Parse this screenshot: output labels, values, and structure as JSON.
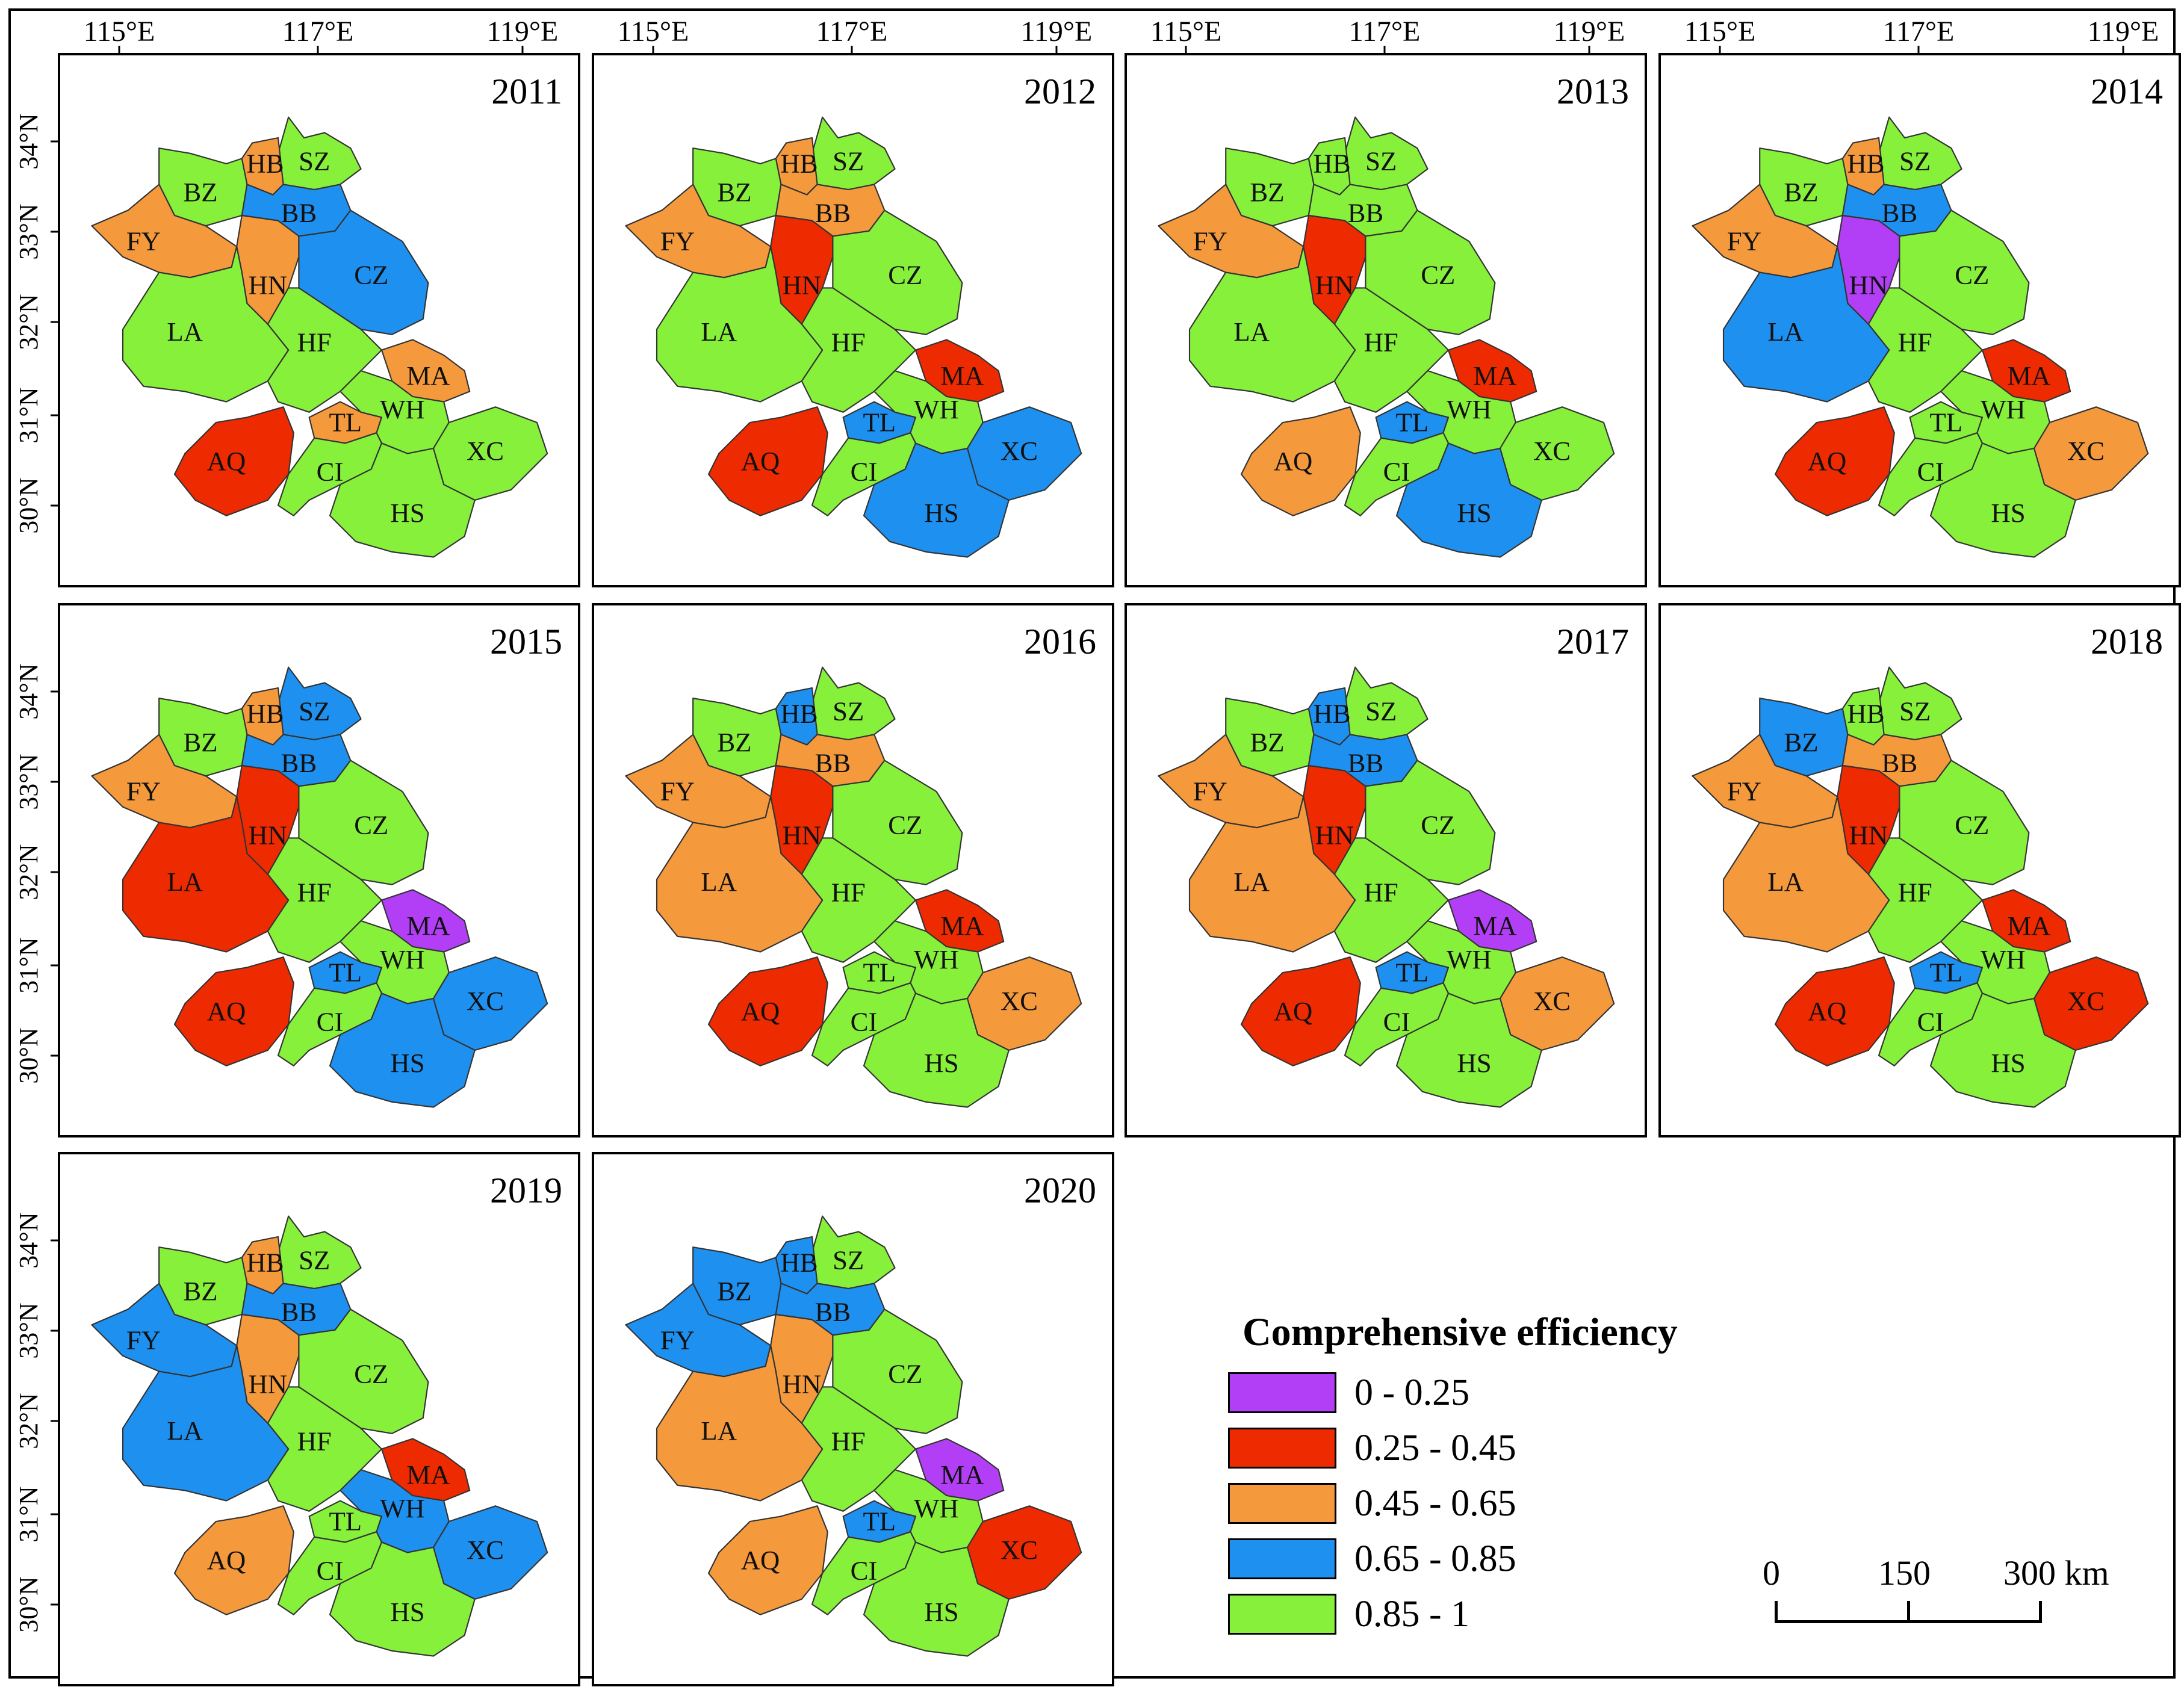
{
  "figure": {
    "longitude_labels": [
      "115°E",
      "117°E",
      "119°E"
    ],
    "latitude_labels": [
      "34°N",
      "33°N",
      "32°N",
      "31°N",
      "30°N"
    ]
  },
  "panels": [
    {
      "year": "2011",
      "regions": {
        "SZ": "g",
        "HB": "o",
        "BZ": "g",
        "FY": "o",
        "BB": "b",
        "HN": "o",
        "CZ": "b",
        "LA": "g",
        "HF": "g",
        "MA": "o",
        "TL": "o",
        "WH": "g",
        "AQ": "r",
        "CI": "g",
        "XC": "g",
        "HS": "g"
      }
    },
    {
      "year": "2012",
      "regions": {
        "SZ": "g",
        "HB": "o",
        "BZ": "g",
        "FY": "o",
        "BB": "o",
        "HN": "r",
        "CZ": "g",
        "LA": "g",
        "HF": "g",
        "MA": "r",
        "TL": "b",
        "WH": "g",
        "AQ": "r",
        "CI": "g",
        "XC": "b",
        "HS": "b"
      }
    },
    {
      "year": "2013",
      "regions": {
        "SZ": "g",
        "HB": "g",
        "BZ": "g",
        "FY": "o",
        "BB": "g",
        "HN": "r",
        "CZ": "g",
        "LA": "g",
        "HF": "g",
        "MA": "r",
        "TL": "b",
        "WH": "g",
        "AQ": "o",
        "CI": "g",
        "XC": "g",
        "HS": "b"
      }
    },
    {
      "year": "2014",
      "regions": {
        "SZ": "g",
        "HB": "o",
        "BZ": "g",
        "FY": "o",
        "BB": "b",
        "HN": "p",
        "CZ": "g",
        "LA": "b",
        "HF": "g",
        "MA": "r",
        "TL": "g",
        "WH": "g",
        "AQ": "r",
        "CI": "g",
        "XC": "o",
        "HS": "g"
      }
    },
    {
      "year": "2015",
      "regions": {
        "SZ": "b",
        "HB": "o",
        "BZ": "g",
        "FY": "o",
        "BB": "b",
        "HN": "r",
        "CZ": "g",
        "LA": "r",
        "HF": "g",
        "MA": "p",
        "TL": "b",
        "WH": "g",
        "AQ": "r",
        "CI": "g",
        "XC": "b",
        "HS": "b"
      }
    },
    {
      "year": "2016",
      "regions": {
        "SZ": "g",
        "HB": "b",
        "BZ": "g",
        "FY": "o",
        "BB": "o",
        "HN": "r",
        "CZ": "g",
        "LA": "o",
        "HF": "g",
        "MA": "r",
        "TL": "g",
        "WH": "g",
        "AQ": "r",
        "CI": "g",
        "XC": "o",
        "HS": "g"
      }
    },
    {
      "year": "2017",
      "regions": {
        "SZ": "g",
        "HB": "b",
        "BZ": "g",
        "FY": "o",
        "BB": "b",
        "HN": "r",
        "CZ": "g",
        "LA": "o",
        "HF": "g",
        "MA": "p",
        "TL": "b",
        "WH": "g",
        "AQ": "r",
        "CI": "g",
        "XC": "o",
        "HS": "g"
      }
    },
    {
      "year": "2018",
      "regions": {
        "SZ": "g",
        "HB": "g",
        "BZ": "b",
        "FY": "o",
        "BB": "o",
        "HN": "r",
        "CZ": "g",
        "LA": "o",
        "HF": "g",
        "MA": "r",
        "TL": "b",
        "WH": "g",
        "AQ": "r",
        "CI": "g",
        "XC": "r",
        "HS": "g"
      }
    },
    {
      "year": "2019",
      "regions": {
        "SZ": "g",
        "HB": "o",
        "BZ": "g",
        "FY": "b",
        "BB": "b",
        "HN": "o",
        "CZ": "g",
        "LA": "b",
        "HF": "g",
        "MA": "r",
        "TL": "g",
        "WH": "b",
        "AQ": "o",
        "CI": "g",
        "XC": "b",
        "HS": "g"
      }
    },
    {
      "year": "2020",
      "regions": {
        "SZ": "g",
        "HB": "b",
        "BZ": "b",
        "FY": "b",
        "BB": "b",
        "HN": "o",
        "CZ": "g",
        "LA": "o",
        "HF": "g",
        "MA": "p",
        "TL": "b",
        "WH": "g",
        "AQ": "o",
        "CI": "g",
        "XC": "r",
        "HS": "g"
      }
    }
  ],
  "legend": {
    "title": "Comprehensive efficiency",
    "classes": [
      {
        "key": "p",
        "label": "0 - 0.25",
        "color": "#b23ef5"
      },
      {
        "key": "r",
        "label": "0.25 - 0.45",
        "color": "#ee2a00"
      },
      {
        "key": "o",
        "label": "0.45 - 0.65",
        "color": "#f5993d"
      },
      {
        "key": "b",
        "label": "0.65 - 0.85",
        "color": "#1e90f0"
      },
      {
        "key": "g",
        "label": "0.85 - 1",
        "color": "#86f03a"
      }
    ]
  },
  "scale_bar": {
    "labels": [
      "0",
      "150",
      "300 km"
    ]
  }
}
